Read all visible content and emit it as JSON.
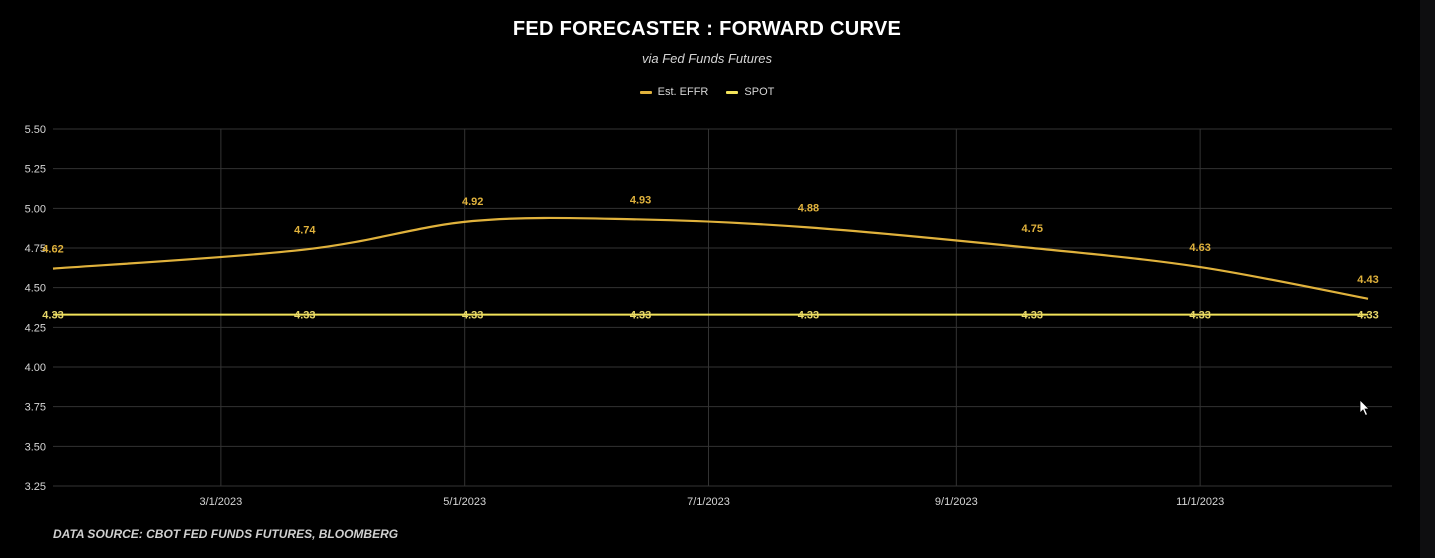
{
  "colors": {
    "background": "#000000",
    "grid": "#333333",
    "effr": "#e0b23c",
    "spot": "#f2e35a",
    "text": "#d6d6d6"
  },
  "chart_data": {
    "type": "line",
    "title": "FED FORECASTER : FORWARD CURVE",
    "subtitle": "via Fed Funds Futures",
    "x_type": "date",
    "x_ticks": [
      "3/1/2023",
      "5/1/2023",
      "7/1/2023",
      "9/1/2023",
      "11/1/2023"
    ],
    "xlim": [
      "2023-01-18",
      "2023-12-19"
    ],
    "ylim": [
      3.25,
      5.5
    ],
    "y_ticks": [
      "3.25",
      "3.50",
      "3.75",
      "4.00",
      "4.25",
      "4.50",
      "4.75",
      "5.00",
      "5.25",
      "5.50"
    ],
    "grid": true,
    "legend_position": "top-center",
    "series": [
      {
        "name": "Est. EFFR",
        "color": "#e0b23c",
        "x": [
          "2023-01-18",
          "2023-03-22",
          "2023-05-03",
          "2023-06-14",
          "2023-07-26",
          "2023-09-20",
          "2023-11-01",
          "2023-12-13"
        ],
        "values": [
          4.62,
          4.74,
          4.92,
          4.93,
          4.88,
          4.75,
          4.63,
          4.43
        ],
        "labels": [
          "4.62",
          "4.74",
          "4.92",
          "4.93",
          "4.88",
          "4.75",
          "4.63",
          "4.43"
        ]
      },
      {
        "name": "SPOT",
        "color": "#f2e35a",
        "x": [
          "2023-01-18",
          "2023-03-22",
          "2023-05-03",
          "2023-06-14",
          "2023-07-26",
          "2023-09-20",
          "2023-11-01",
          "2023-12-13"
        ],
        "values": [
          4.33,
          4.33,
          4.33,
          4.33,
          4.33,
          4.33,
          4.33,
          4.33
        ],
        "labels": [
          "4.33",
          "4.33",
          "4.33",
          "4.33",
          "4.33",
          "4.33",
          "4.33",
          "4.33"
        ]
      }
    ],
    "source_note": "DATA SOURCE: CBOT FED FUNDS FUTURES, BLOOMBERG"
  }
}
